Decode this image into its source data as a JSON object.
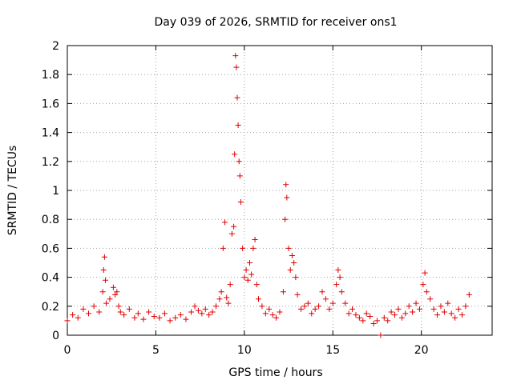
{
  "chart_data": {
    "type": "scatter",
    "title": "Day 039 of 2026, SRMTID for receiver ons1",
    "xlabel": "GPS time / hours",
    "ylabel": "SRMTID / TECUs",
    "xlim": [
      0,
      24
    ],
    "ylim": [
      0,
      2
    ],
    "x_ticks": [
      "0",
      "5",
      "10",
      "15",
      "20"
    ],
    "y_ticks": [
      "0",
      "0.2",
      "0.4",
      "0.6",
      "0.8",
      "1",
      "1.2",
      "1.4",
      "1.6",
      "1.8",
      "2"
    ],
    "grid": true,
    "marker": "+",
    "series": [
      {
        "name": "SRMTID",
        "color": "#e00000",
        "x": [
          0.0,
          0.3,
          0.6,
          0.9,
          1.2,
          1.5,
          1.8,
          2.0,
          2.05,
          2.1,
          2.15,
          2.2,
          2.4,
          2.6,
          2.7,
          2.8,
          2.9,
          3.0,
          3.2,
          3.5,
          3.8,
          4.0,
          4.3,
          4.6,
          4.9,
          5.2,
          5.5,
          5.8,
          6.1,
          6.4,
          6.7,
          7.0,
          7.2,
          7.4,
          7.6,
          7.8,
          8.0,
          8.2,
          8.4,
          8.6,
          8.7,
          8.8,
          8.9,
          9.0,
          9.1,
          9.2,
          9.3,
          9.4,
          9.45,
          9.5,
          9.55,
          9.6,
          9.65,
          9.7,
          9.75,
          9.8,
          9.9,
          10.0,
          10.1,
          10.2,
          10.3,
          10.4,
          10.5,
          10.6,
          10.7,
          10.8,
          11.0,
          11.2,
          11.4,
          11.6,
          11.8,
          12.0,
          12.2,
          12.3,
          12.35,
          12.4,
          12.5,
          12.6,
          12.7,
          12.8,
          12.9,
          13.0,
          13.2,
          13.4,
          13.6,
          13.8,
          14.0,
          14.2,
          14.4,
          14.6,
          14.8,
          15.0,
          15.2,
          15.3,
          15.4,
          15.5,
          15.7,
          15.9,
          16.1,
          16.3,
          16.5,
          16.7,
          16.9,
          17.1,
          17.3,
          17.5,
          17.7,
          17.9,
          18.1,
          18.3,
          18.5,
          18.7,
          18.9,
          19.1,
          19.3,
          19.5,
          19.7,
          19.9,
          20.1,
          20.2,
          20.3,
          20.5,
          20.7,
          20.9,
          21.1,
          21.3,
          21.5,
          21.7,
          21.9,
          22.1,
          22.3,
          22.5,
          22.7
        ],
        "values": [
          0.1,
          0.14,
          0.12,
          0.18,
          0.15,
          0.2,
          0.16,
          0.3,
          0.45,
          0.54,
          0.38,
          0.22,
          0.25,
          0.33,
          0.28,
          0.3,
          0.2,
          0.16,
          0.14,
          0.18,
          0.12,
          0.15,
          0.11,
          0.16,
          0.13,
          0.12,
          0.15,
          0.1,
          0.12,
          0.14,
          0.11,
          0.16,
          0.2,
          0.17,
          0.15,
          0.18,
          0.14,
          0.16,
          0.2,
          0.25,
          0.3,
          0.6,
          0.78,
          0.26,
          0.22,
          0.35,
          0.7,
          0.75,
          1.25,
          1.93,
          1.85,
          1.64,
          1.45,
          1.2,
          1.1,
          0.92,
          0.6,
          0.4,
          0.45,
          0.38,
          0.5,
          0.42,
          0.6,
          0.66,
          0.35,
          0.25,
          0.2,
          0.15,
          0.18,
          0.14,
          0.12,
          0.16,
          0.3,
          0.8,
          1.04,
          0.95,
          0.6,
          0.45,
          0.55,
          0.5,
          0.4,
          0.28,
          0.18,
          0.2,
          0.22,
          0.15,
          0.18,
          0.2,
          0.3,
          0.25,
          0.18,
          0.22,
          0.35,
          0.45,
          0.4,
          0.3,
          0.22,
          0.15,
          0.18,
          0.14,
          0.12,
          0.1,
          0.15,
          0.13,
          0.08,
          0.1,
          0.0,
          0.12,
          0.1,
          0.16,
          0.14,
          0.18,
          0.12,
          0.15,
          0.2,
          0.16,
          0.22,
          0.18,
          0.35,
          0.43,
          0.3,
          0.25,
          0.18,
          0.14,
          0.2,
          0.16,
          0.22,
          0.15,
          0.12,
          0.18,
          0.14,
          0.2,
          0.28
        ]
      }
    ]
  }
}
